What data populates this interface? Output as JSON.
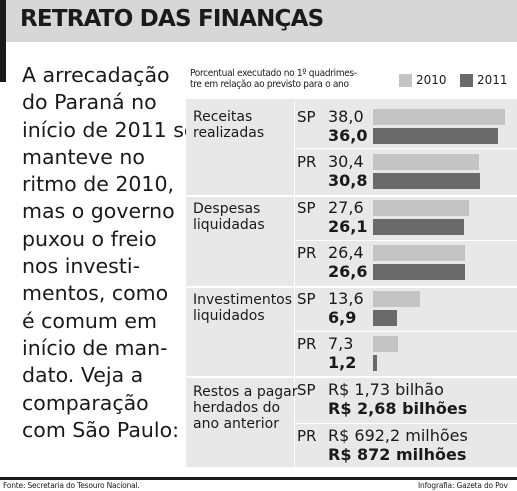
{
  "header": {
    "title": "RETRATO DAS FINANÇAS"
  },
  "intro": {
    "lines": [
      "A arrecadação",
      "do Paraná no",
      "início de 2011 se",
      "manteve no",
      "ritmo de 2010,",
      "mas o governo",
      "puxou o freio",
      "nos investi-",
      "mentos, como",
      "é comum em",
      "início de man-",
      "dato. Veja a",
      "comparação",
      "com São Paulo:"
    ]
  },
  "chart_data": {
    "type": "bar",
    "orientation": "horizontal",
    "caption_lines": [
      "Porcentual executado no 1º quadrimes-",
      "tre em relação ao previsto para o ano"
    ],
    "legend": [
      {
        "name": "2010",
        "color": "#c4c4c4"
      },
      {
        "name": "2011",
        "color": "#6a6a6a"
      }
    ],
    "xlim": [
      0,
      40
    ],
    "categories": [
      {
        "label_lines": [
          "Receitas",
          "realizadas"
        ],
        "rows": [
          {
            "region": "SP",
            "values": [
              38.0,
              36.0
            ],
            "display": [
              "38,0",
              "36,0"
            ]
          },
          {
            "region": "PR",
            "values": [
              30.4,
              30.8
            ],
            "display": [
              "30,4",
              "30,8"
            ]
          }
        ]
      },
      {
        "label_lines": [
          "Despesas",
          "liquidadas"
        ],
        "rows": [
          {
            "region": "SP",
            "values": [
              27.6,
              26.1
            ],
            "display": [
              "27,6",
              "26,1"
            ]
          },
          {
            "region": "PR",
            "values": [
              26.4,
              26.6
            ],
            "display": [
              "26,4",
              "26,6"
            ]
          }
        ]
      },
      {
        "label_lines": [
          "Investimentos",
          "liquidados"
        ],
        "rows": [
          {
            "region": "SP",
            "values": [
              13.6,
              6.9
            ],
            "display": [
              "13,6",
              "6,9"
            ]
          },
          {
            "region": "PR",
            "values": [
              7.3,
              1.2
            ],
            "display": [
              "7,3",
              "1,2"
            ]
          }
        ]
      }
    ],
    "money_category": {
      "label_lines": [
        "Restos a pagar",
        "herdados do",
        "ano anterior"
      ],
      "rows": [
        {
          "region": "SP",
          "display": [
            "R$ 1,73 bilhão",
            "R$ 2,68 bilhões"
          ]
        },
        {
          "region": "PR",
          "display": [
            "R$ 692,2 milhões",
            "R$ 872 milhões"
          ]
        }
      ]
    }
  },
  "footer": {
    "source": "Fonte: Secretaria do Tesouro Nacional.",
    "credit": "Infografia: Gazeta do Pov"
  }
}
